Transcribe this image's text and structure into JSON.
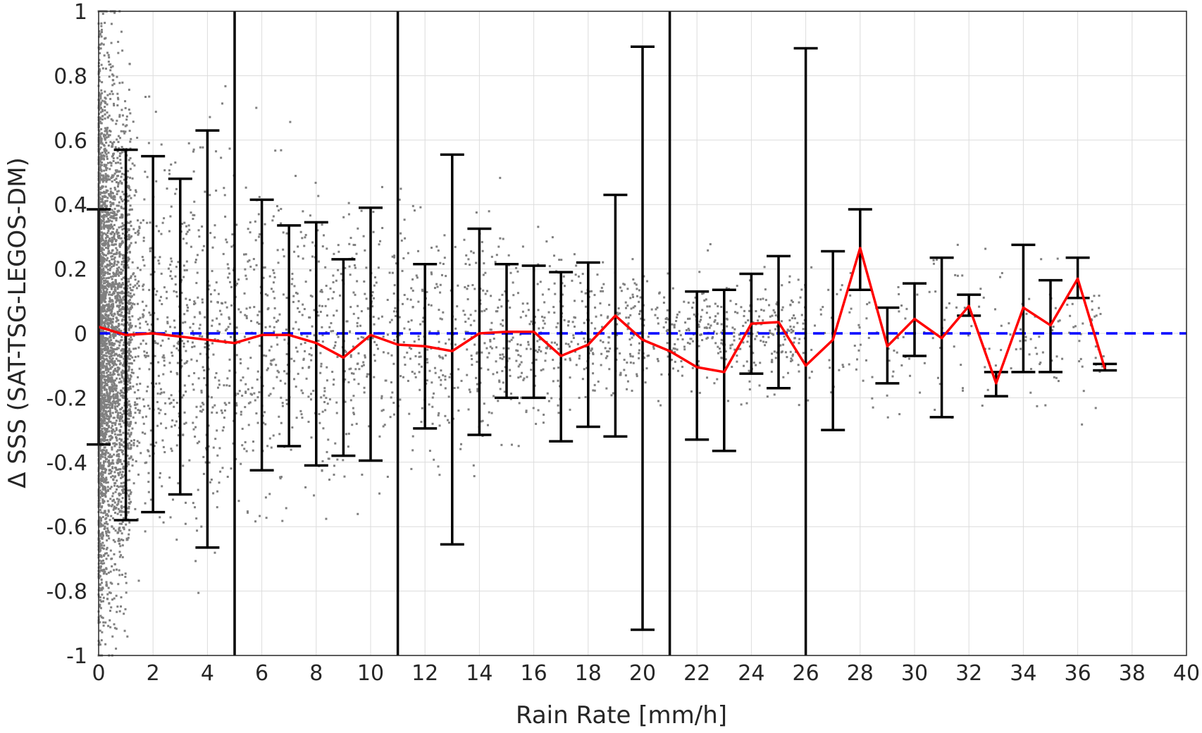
{
  "chart_data": {
    "type": "scatter",
    "xlabel": "Rain Rate [mm/h]",
    "ylabel": "Δ SSS (SAT-TSG-LEGOS-DM)",
    "xlim": [
      0,
      40
    ],
    "ylim": [
      -1,
      1
    ],
    "grid": true,
    "xticks": [
      0,
      2,
      4,
      6,
      8,
      10,
      12,
      14,
      16,
      18,
      20,
      22,
      24,
      26,
      28,
      30,
      32,
      34,
      36,
      38,
      40
    ],
    "yticks": [
      -1,
      -0.8,
      -0.6,
      -0.4,
      -0.2,
      0,
      0.2,
      0.4,
      0.6,
      0.8,
      1
    ],
    "scatter_color": "#808080",
    "mean_line_color": "#ff0000",
    "errorbar_color": "#000000",
    "zero_line_color": "#0000ff",
    "zero_line_style": "dashed",
    "zero_line_y": 0,
    "mean": {
      "x": [
        0,
        1,
        2,
        3,
        4,
        5,
        6,
        7,
        8,
        9,
        10,
        11,
        12,
        13,
        14,
        15,
        16,
        17,
        18,
        19,
        20,
        21,
        22,
        23,
        24,
        25,
        26,
        27,
        28,
        29,
        30,
        31,
        32,
        33,
        34,
        35,
        36,
        37
      ],
      "y": [
        0.02,
        -0.005,
        0.0,
        -0.01,
        -0.02,
        -0.03,
        -0.005,
        -0.005,
        -0.03,
        -0.075,
        -0.005,
        -0.035,
        -0.04,
        -0.055,
        0.0,
        0.005,
        0.005,
        -0.07,
        -0.035,
        0.055,
        -0.02,
        -0.055,
        -0.105,
        -0.12,
        0.03,
        0.035,
        -0.1,
        -0.02,
        0.265,
        -0.04,
        0.045,
        -0.015,
        0.085,
        -0.155,
        0.08,
        0.025,
        0.17,
        -0.11
      ]
    },
    "errorbars": [
      {
        "x": 0,
        "lower": -0.345,
        "upper": 0.385
      },
      {
        "x": 1,
        "lower": -0.58,
        "upper": 0.57
      },
      {
        "x": 2,
        "lower": -0.555,
        "upper": 0.55
      },
      {
        "x": 3,
        "lower": -0.5,
        "upper": 0.48
      },
      {
        "x": 4,
        "lower": -0.665,
        "upper": 0.63
      },
      {
        "x": 5,
        "lower": -1.0,
        "upper": 1.0
      },
      {
        "x": 6,
        "lower": -0.425,
        "upper": 0.415
      },
      {
        "x": 7,
        "lower": -0.35,
        "upper": 0.335
      },
      {
        "x": 8,
        "lower": -0.41,
        "upper": 0.345
      },
      {
        "x": 9,
        "lower": -0.38,
        "upper": 0.23
      },
      {
        "x": 10,
        "lower": -0.395,
        "upper": 0.39
      },
      {
        "x": 11,
        "lower": -1.0,
        "upper": 1.0
      },
      {
        "x": 12,
        "lower": -0.295,
        "upper": 0.215
      },
      {
        "x": 13,
        "lower": -0.655,
        "upper": 0.555
      },
      {
        "x": 14,
        "lower": -0.315,
        "upper": 0.325
      },
      {
        "x": 15,
        "lower": -0.2,
        "upper": 0.215
      },
      {
        "x": 16,
        "lower": -0.2,
        "upper": 0.21
      },
      {
        "x": 17,
        "lower": -0.335,
        "upper": 0.19
      },
      {
        "x": 18,
        "lower": -0.29,
        "upper": 0.22
      },
      {
        "x": 19,
        "lower": -0.32,
        "upper": 0.43
      },
      {
        "x": 20,
        "lower": -0.92,
        "upper": 0.89
      },
      {
        "x": 21,
        "lower": -1.0,
        "upper": 1.0
      },
      {
        "x": 22,
        "lower": -0.33,
        "upper": 0.13
      },
      {
        "x": 23,
        "lower": -0.365,
        "upper": 0.135
      },
      {
        "x": 24,
        "lower": -0.125,
        "upper": 0.185
      },
      {
        "x": 25,
        "lower": -0.17,
        "upper": 0.24
      },
      {
        "x": 26,
        "lower": -1.0,
        "upper": 0.885
      },
      {
        "x": 27,
        "lower": -0.3,
        "upper": 0.255
      },
      {
        "x": 28,
        "lower": 0.135,
        "upper": 0.385
      },
      {
        "x": 29,
        "lower": -0.155,
        "upper": 0.08
      },
      {
        "x": 30,
        "lower": -0.07,
        "upper": 0.155
      },
      {
        "x": 31,
        "lower": -0.26,
        "upper": 0.235
      },
      {
        "x": 32,
        "lower": 0.055,
        "upper": 0.12
      },
      {
        "x": 33,
        "lower": -0.195,
        "upper": -0.12
      },
      {
        "x": 34,
        "lower": -0.12,
        "upper": 0.275
      },
      {
        "x": 35,
        "lower": -0.12,
        "upper": 0.165
      },
      {
        "x": 36,
        "lower": 0.11,
        "upper": 0.235
      },
      {
        "x": 37,
        "lower": -0.115,
        "upper": -0.095
      }
    ]
  }
}
